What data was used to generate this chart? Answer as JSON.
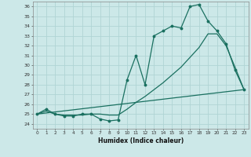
{
  "title": "",
  "xlabel": "Humidex (Indice chaleur)",
  "xlim": [
    -0.5,
    23.5
  ],
  "ylim": [
    23.5,
    36.5
  ],
  "yticks": [
    24,
    25,
    26,
    27,
    28,
    29,
    30,
    31,
    32,
    33,
    34,
    35,
    36
  ],
  "xticks": [
    0,
    1,
    2,
    3,
    4,
    5,
    6,
    7,
    8,
    9,
    10,
    11,
    12,
    13,
    14,
    15,
    16,
    17,
    18,
    19,
    20,
    21,
    22,
    23
  ],
  "bg_color": "#cce8e8",
  "grid_color": "#b0d4d4",
  "line_color": "#1a7060",
  "line1_x": [
    0,
    1,
    2,
    3,
    4,
    5,
    6,
    7,
    8,
    9,
    10,
    11,
    12,
    13,
    14,
    15,
    16,
    17,
    18,
    19,
    20,
    21,
    22,
    23
  ],
  "line1_y": [
    25.0,
    25.5,
    25.0,
    24.8,
    24.8,
    25.0,
    25.0,
    24.5,
    24.3,
    24.4,
    28.5,
    31.0,
    28.0,
    33.0,
    33.5,
    34.0,
    33.8,
    36.0,
    36.2,
    34.5,
    33.5,
    32.2,
    29.5,
    27.5
  ],
  "line2_x": [
    0,
    1,
    2,
    3,
    4,
    5,
    6,
    7,
    8,
    9,
    10,
    11,
    12,
    13,
    14,
    15,
    16,
    17,
    18,
    19,
    20,
    21,
    22,
    23
  ],
  "line2_y": [
    25.0,
    25.3,
    25.0,
    24.9,
    24.9,
    24.9,
    25.0,
    25.0,
    24.9,
    24.9,
    25.5,
    26.2,
    26.8,
    27.5,
    28.2,
    29.0,
    29.8,
    30.8,
    31.8,
    33.2,
    33.2,
    32.0,
    29.8,
    27.5
  ],
  "line3_x": [
    0,
    23
  ],
  "line3_y": [
    25.0,
    27.5
  ]
}
